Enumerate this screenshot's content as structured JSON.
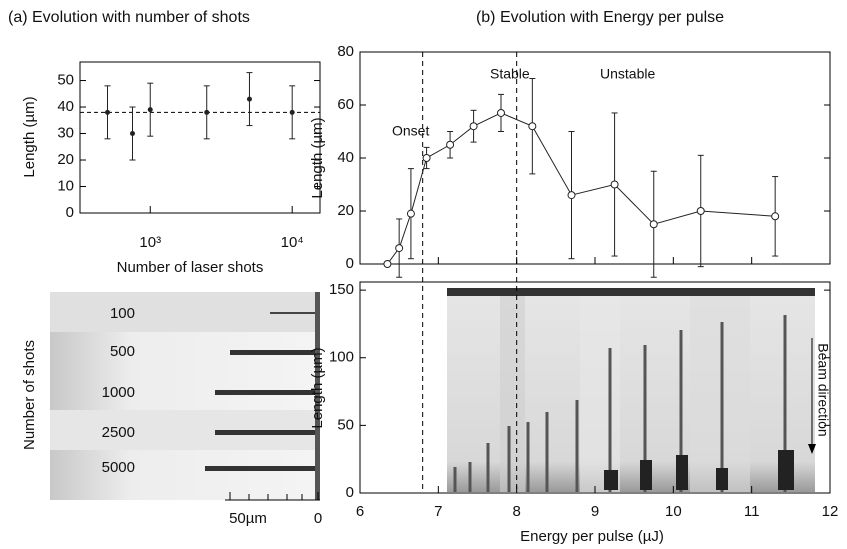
{
  "chart_data": [
    {
      "type": "scatter",
      "title": "(a) Evolution with number of shots",
      "x_label": "Number of laser shots",
      "y_label": "Length (µm)",
      "x": [
        500,
        750,
        1000,
        2500,
        5000,
        10000
      ],
      "values": [
        38,
        30,
        39,
        38,
        43,
        38
      ],
      "errors": [
        10,
        10,
        10,
        10,
        10,
        10
      ],
      "reference_line": 38,
      "xscale": "log",
      "xlim": [
        320,
        15700
      ],
      "xticks": [
        {
          "value": 1000,
          "label": "10³"
        },
        {
          "value": 10000,
          "label": "10⁴"
        }
      ],
      "ylim": [
        0,
        57
      ],
      "yticks": [
        0,
        10,
        20,
        30,
        40,
        50
      ],
      "color": "#222222"
    },
    {
      "type": "image",
      "y_label": "Number of shots",
      "row_labels": [
        "100",
        "500",
        "1000",
        "2500",
        "5000"
      ],
      "scale_labels": [
        "50µm",
        "0"
      ]
    },
    {
      "type": "line",
      "title": "(b) Evolution with Energy per pulse",
      "y_label": "Length (µm)",
      "x": [
        6.35,
        6.5,
        6.65,
        6.85,
        7.15,
        7.45,
        7.8,
        8.2,
        8.7,
        9.25,
        9.75,
        10.35,
        11.3
      ],
      "values": [
        0,
        6,
        19,
        40,
        45,
        52,
        57,
        52,
        26,
        30,
        15,
        20,
        18
      ],
      "errors": [
        0,
        11,
        17,
        4,
        5,
        6,
        7,
        18,
        24,
        27,
        20,
        21,
        15
      ],
      "xlim": [
        6,
        12
      ],
      "ylim": [
        0,
        80
      ],
      "yticks": [
        0,
        20,
        40,
        60,
        80
      ],
      "vlines": [
        6.8,
        8.0
      ],
      "annotations": [
        "Onset",
        "Stable",
        "Unstable"
      ],
      "color": "#222222"
    },
    {
      "type": "image",
      "x_label": "Energy per pulse (µJ)",
      "y_label": "Length (µm)",
      "xlim": [
        6,
        12
      ],
      "xticks": [
        6,
        7,
        8,
        9,
        10,
        11,
        12
      ],
      "ylim": [
        0,
        156
      ],
      "yticks": [
        0,
        50,
        100,
        150
      ],
      "annotation": "Beam direction"
    }
  ]
}
